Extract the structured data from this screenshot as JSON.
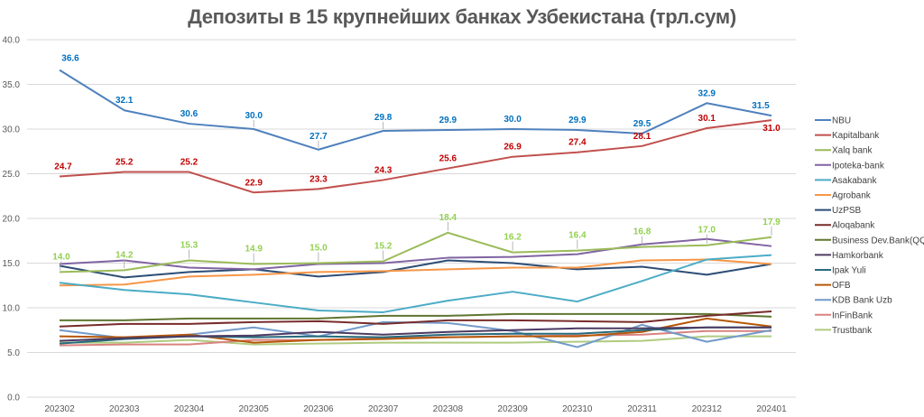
{
  "chart_data": {
    "type": "line",
    "title": "Депозиты в 15 крупнейших банках Узбекистана (трл.сум)",
    "xlabel": "",
    "ylabel": "",
    "ylim": [
      0,
      40
    ],
    "y_ticks": [
      "0.0",
      "5.0",
      "10.0",
      "15.0",
      "20.0",
      "25.0",
      "30.0",
      "35.0",
      "40.0"
    ],
    "grid": true,
    "legend_position": "right",
    "categories": [
      "202302",
      "202303",
      "202304",
      "202305",
      "202306",
      "202307",
      "202308",
      "202309",
      "202310",
      "202311",
      "202312",
      "202401"
    ],
    "series": [
      {
        "name": "NBU",
        "color": "#4F81BD",
        "labels": true,
        "label_color": "#0070C0",
        "values": [
          36.6,
          32.1,
          30.6,
          30.0,
          27.7,
          29.8,
          29.9,
          30.0,
          29.9,
          29.5,
          32.9,
          31.5
        ]
      },
      {
        "name": "Kapitalbank",
        "color": "#C0504D",
        "labels": true,
        "label_color": "#C00000",
        "values": [
          24.7,
          25.2,
          25.2,
          22.9,
          23.3,
          24.3,
          25.6,
          26.9,
          27.4,
          28.1,
          30.1,
          31.0
        ]
      },
      {
        "name": "Xalq bank",
        "color": "#9BBB59",
        "labels": true,
        "label_color": "#92D050",
        "values": [
          14.0,
          14.2,
          15.3,
          14.9,
          15.0,
          15.2,
          18.4,
          16.2,
          16.4,
          16.8,
          17.0,
          17.9
        ]
      },
      {
        "name": "Ipoteka-bank",
        "color": "#8064A2",
        "values": [
          14.9,
          15.3,
          14.5,
          14.3,
          14.9,
          15.0,
          15.6,
          15.7,
          16.0,
          17.1,
          17.7,
          16.9
        ]
      },
      {
        "name": "Asakabank",
        "color": "#4BACC6",
        "values": [
          12.8,
          12.0,
          11.5,
          10.6,
          9.7,
          9.5,
          10.8,
          11.8,
          10.7,
          13.0,
          15.4,
          15.9
        ]
      },
      {
        "name": "Agrobank",
        "color": "#F79646",
        "values": [
          12.5,
          12.6,
          13.5,
          13.7,
          14.0,
          14.1,
          14.3,
          14.5,
          14.5,
          15.3,
          15.4,
          14.9
        ]
      },
      {
        "name": "UzPSB",
        "color": "#2C4D75",
        "values": [
          14.7,
          13.4,
          14.0,
          14.3,
          13.5,
          14.0,
          15.3,
          15.0,
          14.3,
          14.6,
          13.7,
          14.9
        ]
      },
      {
        "name": "Aloqabank",
        "color": "#772C2A",
        "values": [
          7.9,
          8.2,
          8.2,
          8.4,
          8.5,
          8.2,
          8.6,
          8.6,
          8.5,
          8.4,
          9.1,
          9.6
        ]
      },
      {
        "name": "Business Dev.Bank(QQB)",
        "color": "#5F7530",
        "values": [
          8.6,
          8.6,
          8.8,
          8.8,
          8.8,
          9.1,
          9.1,
          9.3,
          9.3,
          9.3,
          9.3,
          9.0
        ]
      },
      {
        "name": "Hamkorbank",
        "color": "#4D3B62",
        "values": [
          6.3,
          6.6,
          6.8,
          6.9,
          7.3,
          7.0,
          7.3,
          7.5,
          7.7,
          7.7,
          7.8,
          7.8
        ]
      },
      {
        "name": "Ipak Yuli",
        "color": "#276A7C",
        "values": [
          6.0,
          6.5,
          6.8,
          6.7,
          6.8,
          6.7,
          7.0,
          7.1,
          7.1,
          7.5,
          7.8,
          7.8
        ]
      },
      {
        "name": "OFB",
        "color": "#B65708",
        "values": [
          6.8,
          6.7,
          7.0,
          6.1,
          6.4,
          6.5,
          6.7,
          6.8,
          6.8,
          7.3,
          8.8,
          7.9
        ]
      },
      {
        "name": "KDB Bank Uzb",
        "color": "#729ACA",
        "values": [
          7.5,
          6.6,
          7.0,
          7.8,
          6.8,
          8.4,
          8.3,
          7.4,
          5.6,
          8.1,
          6.2,
          7.5
        ]
      },
      {
        "name": "InFinBank",
        "color": "#D9827F",
        "values": [
          5.8,
          5.9,
          5.9,
          6.4,
          6.4,
          6.6,
          6.7,
          6.8,
          6.9,
          7.0,
          7.4,
          7.4
        ]
      },
      {
        "name": "Trustbank",
        "color": "#AFCB7F",
        "values": [
          6.1,
          6.1,
          6.4,
          5.9,
          6.0,
          6.1,
          6.1,
          6.1,
          6.2,
          6.3,
          6.8,
          6.8
        ]
      }
    ]
  }
}
